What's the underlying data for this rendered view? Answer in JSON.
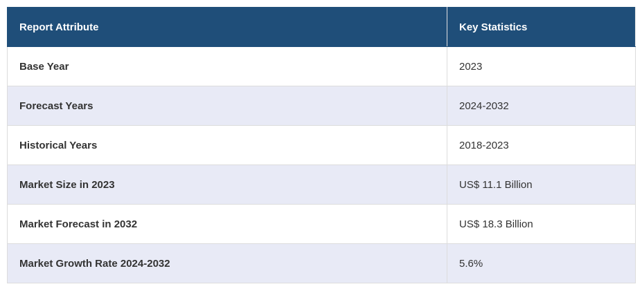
{
  "table": {
    "header": [
      "Report Attribute",
      "Key Statistics"
    ],
    "rows": [
      [
        "Base Year",
        "2023"
      ],
      [
        "Forecast Years",
        "2024-2032"
      ],
      [
        "Historical Years",
        "2018-2023"
      ],
      [
        "Market Size in 2023",
        "US$ 11.1 Billion"
      ],
      [
        "Market Forecast in 2032",
        "US$ 18.3 Billion"
      ],
      [
        "Market Growth Rate 2024-2032",
        "5.6%"
      ]
    ]
  }
}
